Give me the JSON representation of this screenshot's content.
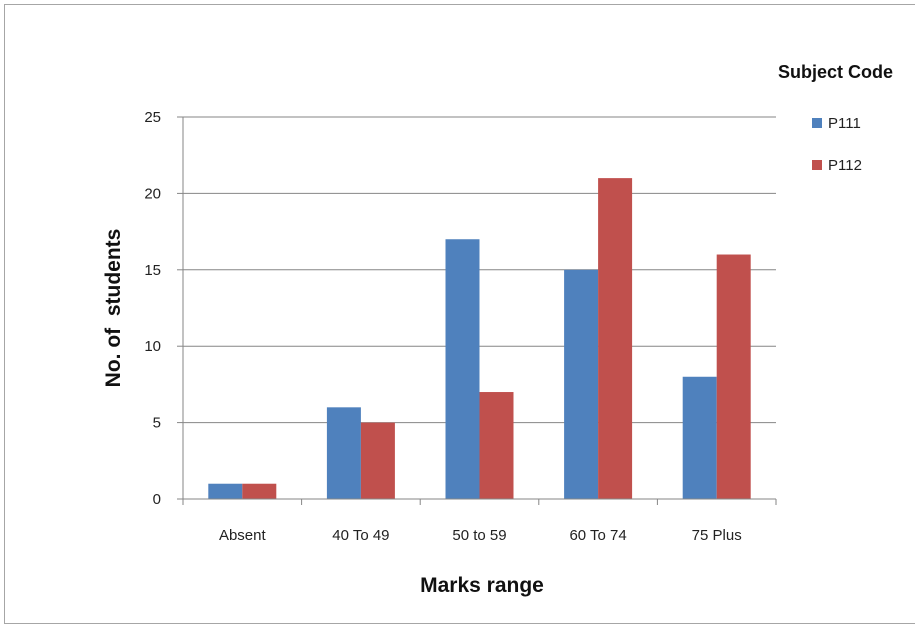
{
  "chart_data": {
    "type": "bar",
    "categories": [
      "Absent",
      "40 To 49",
      "50 to 59",
      "60 To 74",
      "75 Plus"
    ],
    "series": [
      {
        "name": "P111",
        "values": [
          1,
          6,
          17,
          15,
          8
        ],
        "color": "#4f81bd"
      },
      {
        "name": "P112",
        "values": [
          1,
          5,
          7,
          21,
          16
        ],
        "color": "#c0504d"
      }
    ],
    "xlabel": "Marks range",
    "ylabel": "No. of  students",
    "ylim": [
      0,
      25
    ],
    "yticks": [
      0,
      5,
      10,
      15,
      20,
      25
    ],
    "grid": true,
    "legend": {
      "title": "Subject Code",
      "position": "right"
    }
  }
}
